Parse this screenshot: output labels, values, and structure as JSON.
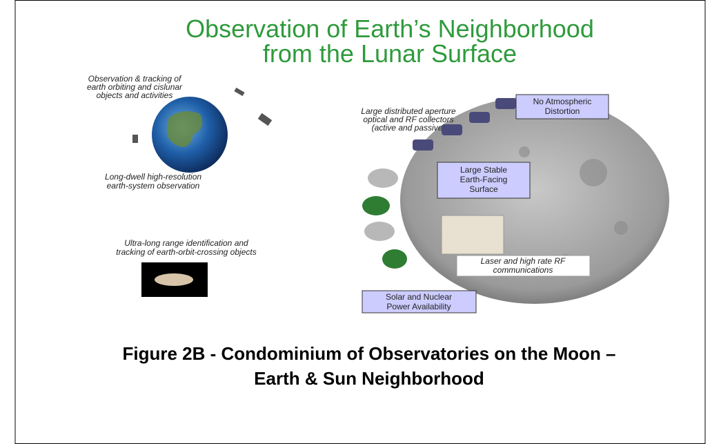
{
  "title": {
    "lines": [
      "Observation of Earth’s Neighborhood",
      "from the Lunar Surface"
    ]
  },
  "annotations": [
    {
      "lines": [
        "Observation & tracking of",
        "earth orbiting and cislunar",
        "objects and activities"
      ]
    },
    {
      "lines": [
        "Long-dwell high-resolution",
        "earth-system observation"
      ]
    },
    {
      "lines": [
        "Ultra-long range identification and",
        "tracking of earth-orbit-crossing objects"
      ]
    },
    {
      "lines": [
        "Large distributed aperture",
        "optical and RF collectors",
        "(active and passive)"
      ]
    }
  ],
  "callouts": [
    {
      "lines": [
        "No Atmospheric",
        "Distortion"
      ]
    },
    {
      "lines": [
        "Large Stable",
        "Earth-Facing",
        "Surface"
      ]
    },
    {
      "lines": [
        "Laser and high rate RF",
        "communications"
      ]
    },
    {
      "lines": [
        "Solar and Nuclear",
        "Power Availability"
      ]
    }
  ],
  "caption": {
    "lines": [
      "Figure 2B - Condominium of Observatories on the Moon –",
      "Earth & Sun Neighborhood"
    ]
  }
}
